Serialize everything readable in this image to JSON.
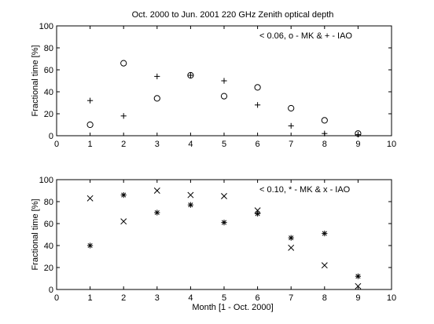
{
  "figure": {
    "title": "Oct. 2000 to Jun. 2001  220 GHz Zenith optical depth",
    "xlabel": "Month [1 - Oct. 2000]"
  },
  "chart_data": [
    {
      "type": "scatter",
      "annotation": "< 0.06, o - MK & + - IAO",
      "xlabel": "",
      "ylabel": "Fractional time [%]",
      "xlim": [
        0,
        10
      ],
      "ylim": [
        0,
        100
      ],
      "xticks": [
        0,
        1,
        2,
        3,
        4,
        5,
        6,
        7,
        8,
        9,
        10
      ],
      "yticks": [
        0,
        20,
        40,
        60,
        80,
        100
      ],
      "grid": false,
      "series": [
        {
          "marker": "circle",
          "x": [
            1,
            2,
            3,
            4,
            5,
            6,
            7,
            8,
            9
          ],
          "y": [
            10,
            66,
            34,
            55,
            36,
            44,
            25,
            14,
            2
          ]
        },
        {
          "marker": "plus",
          "x": [
            1,
            2,
            3,
            4,
            5,
            6,
            7,
            8,
            9
          ],
          "y": [
            32,
            18,
            54,
            55,
            50,
            28,
            9,
            2,
            1
          ]
        }
      ]
    },
    {
      "type": "scatter",
      "annotation": "< 0.10, * - MK & x - IAO",
      "xlabel": "Month [1 - Oct. 2000]",
      "ylabel": "Fractional time [%]",
      "xlim": [
        0,
        10
      ],
      "ylim": [
        0,
        100
      ],
      "xticks": [
        0,
        1,
        2,
        3,
        4,
        5,
        6,
        7,
        8,
        9,
        10
      ],
      "yticks": [
        0,
        20,
        40,
        60,
        80,
        100
      ],
      "grid": false,
      "series": [
        {
          "marker": "asterisk",
          "x": [
            1,
            2,
            3,
            4,
            5,
            6,
            7,
            8,
            9
          ],
          "y": [
            40,
            86,
            70,
            77,
            61,
            69,
            47,
            51,
            12
          ]
        },
        {
          "marker": "cross",
          "x": [
            1,
            2,
            3,
            4,
            5,
            6,
            7,
            8,
            9
          ],
          "y": [
            83,
            62,
            90,
            86,
            85,
            72,
            38,
            22,
            3
          ]
        }
      ]
    }
  ]
}
